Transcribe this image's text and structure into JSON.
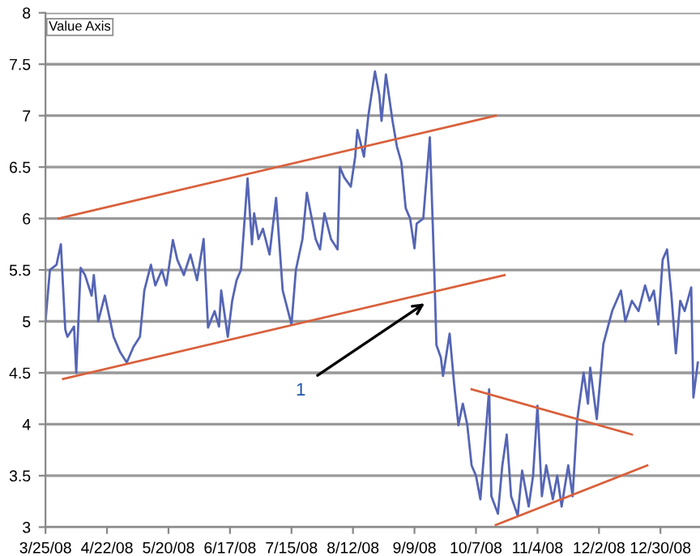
{
  "chart_data": {
    "type": "line",
    "ylabel": "Value Axis",
    "x": [
      "2008-03-25",
      "2008-03-27",
      "2008-03-30",
      "2008-04-01",
      "2008-04-03",
      "2008-04-04",
      "2008-04-07",
      "2008-04-08",
      "2008-04-10",
      "2008-04-12",
      "2008-04-15",
      "2008-04-16",
      "2008-04-18",
      "2008-04-21",
      "2008-04-23",
      "2008-04-25",
      "2008-04-28",
      "2008-05-01",
      "2008-05-04",
      "2008-05-07",
      "2008-05-09",
      "2008-05-12",
      "2008-05-14",
      "2008-05-17",
      "2008-05-19",
      "2008-05-22",
      "2008-05-24",
      "2008-05-27",
      "2008-05-30",
      "2008-06-02",
      "2008-06-05",
      "2008-06-07",
      "2008-06-10",
      "2008-06-12",
      "2008-06-13",
      "2008-06-16",
      "2008-06-18",
      "2008-06-20",
      "2008-06-22",
      "2008-06-25",
      "2008-06-27",
      "2008-06-28",
      "2008-06-30",
      "2008-07-02",
      "2008-07-05",
      "2008-07-08",
      "2008-07-11",
      "2008-07-15",
      "2008-07-17",
      "2008-07-20",
      "2008-07-22",
      "2008-07-26",
      "2008-07-28",
      "2008-07-30",
      "2008-08-02",
      "2008-08-05",
      "2008-08-06",
      "2008-08-08",
      "2008-08-11",
      "2008-08-13",
      "2008-08-14",
      "2008-08-17",
      "2008-08-19",
      "2008-08-22",
      "2008-08-24",
      "2008-08-25",
      "2008-08-27",
      "2008-08-30",
      "2008-09-01",
      "2008-09-03",
      "2008-09-05",
      "2008-09-07",
      "2008-09-09",
      "2008-09-10",
      "2008-09-13",
      "2008-09-16",
      "2008-09-18",
      "2008-09-19",
      "2008-09-21",
      "2008-09-22",
      "2008-09-25",
      "2008-09-27",
      "2008-09-29",
      "2008-10-01",
      "2008-10-03",
      "2008-10-05",
      "2008-10-07",
      "2008-10-09",
      "2008-10-11",
      "2008-10-13",
      "2008-10-14",
      "2008-10-17",
      "2008-10-19",
      "2008-10-21",
      "2008-10-23",
      "2008-10-26",
      "2008-10-28",
      "2008-10-31",
      "2008-11-02",
      "2008-11-04",
      "2008-11-06",
      "2008-11-08",
      "2008-11-11",
      "2008-11-13",
      "2008-11-15",
      "2008-11-18",
      "2008-11-20",
      "2008-11-22",
      "2008-11-25",
      "2008-11-27",
      "2008-11-28",
      "2008-12-01",
      "2008-12-04",
      "2008-12-08",
      "2008-12-12",
      "2008-12-14",
      "2008-12-17",
      "2008-12-20",
      "2008-12-23",
      "2008-12-25",
      "2008-12-27",
      "2008-12-29",
      "2008-12-31",
      "2009-01-02",
      "2009-01-04",
      "2009-01-06",
      "2009-01-08",
      "2009-01-10",
      "2009-01-13",
      "2009-01-14",
      "2009-01-16"
    ],
    "series": [
      {
        "color": "#5565b5",
        "values": [
          5.0,
          5.5,
          5.55,
          5.75,
          4.92,
          4.85,
          4.95,
          4.5,
          5.52,
          5.45,
          5.25,
          5.45,
          5.0,
          5.25,
          5.05,
          4.85,
          4.7,
          4.6,
          4.75,
          4.85,
          5.3,
          5.55,
          5.35,
          5.5,
          5.35,
          5.79,
          5.6,
          5.45,
          5.65,
          5.4,
          5.8,
          4.94,
          5.1,
          4.95,
          5.3,
          4.85,
          5.2,
          5.4,
          5.5,
          6.39,
          5.75,
          6.05,
          5.8,
          5.9,
          5.65,
          6.2,
          5.3,
          4.97,
          5.5,
          5.8,
          6.25,
          5.8,
          5.7,
          6.05,
          5.8,
          5.7,
          6.5,
          6.4,
          6.31,
          6.6,
          6.86,
          6.6,
          7.0,
          7.43,
          7.2,
          6.95,
          7.4,
          6.95,
          6.7,
          6.55,
          6.1,
          6.0,
          5.71,
          5.95,
          6.0,
          6.79,
          5.5,
          4.77,
          4.65,
          4.47,
          4.88,
          4.4,
          3.99,
          4.2,
          4.0,
          3.6,
          3.5,
          3.27,
          3.8,
          4.34,
          3.3,
          3.13,
          3.6,
          3.9,
          3.3,
          3.11,
          3.55,
          3.2,
          3.5,
          4.18,
          3.3,
          3.6,
          3.27,
          3.5,
          3.2,
          3.6,
          3.3,
          4.03,
          4.5,
          4.2,
          4.55,
          4.05,
          4.78,
          5.1,
          5.3,
          5.0,
          5.2,
          5.1,
          5.35,
          5.2,
          5.3,
          4.97,
          5.6,
          5.7,
          5.25,
          4.69,
          5.2,
          5.1,
          5.33,
          4.26,
          4.6
        ]
      },
      {
        "type": "line",
        "color": "#d9603b",
        "x": [
          "2008-03-31",
          "2008-10-16"
        ],
        "values": [
          6.0,
          7.0
        ]
      },
      {
        "type": "line",
        "color": "#d9603b",
        "x": [
          "2008-04-02",
          "2008-10-20"
        ],
        "values": [
          4.44,
          5.45
        ]
      },
      {
        "type": "line",
        "color": "#d9603b",
        "x": [
          "2008-10-05",
          "2008-12-17"
        ],
        "values": [
          4.34,
          3.9
        ]
      },
      {
        "type": "line",
        "color": "#d9603b",
        "x": [
          "2008-10-16",
          "2008-12-24"
        ],
        "values": [
          3.02,
          3.6
        ]
      }
    ],
    "xlim": [
      "2008-03-25",
      "2009-01-17"
    ],
    "xticks": [
      {
        "value": "2008-03-25",
        "label": "3/25/08"
      },
      {
        "value": "2008-04-22",
        "label": "4/22/08"
      },
      {
        "value": "2008-05-20",
        "label": "5/20/08"
      },
      {
        "value": "2008-06-17",
        "label": "6/17/08"
      },
      {
        "value": "2008-07-15",
        "label": "7/15/08"
      },
      {
        "value": "2008-08-12",
        "label": "8/12/08"
      },
      {
        "value": "2008-09-09",
        "label": "9/9/08"
      },
      {
        "value": "2008-10-07",
        "label": "10/7/08"
      },
      {
        "value": "2008-11-04",
        "label": "11/4/08"
      },
      {
        "value": "2008-12-02",
        "label": "12/2/08"
      },
      {
        "value": "2008-12-30",
        "label": "12/30/08"
      }
    ],
    "ylim": [
      3,
      8
    ],
    "yticks": [
      3,
      3.5,
      4,
      4.5,
      5,
      5.5,
      6,
      6.5,
      7,
      7.5,
      8
    ],
    "grid": "y",
    "annotations": [
      "1"
    ]
  }
}
